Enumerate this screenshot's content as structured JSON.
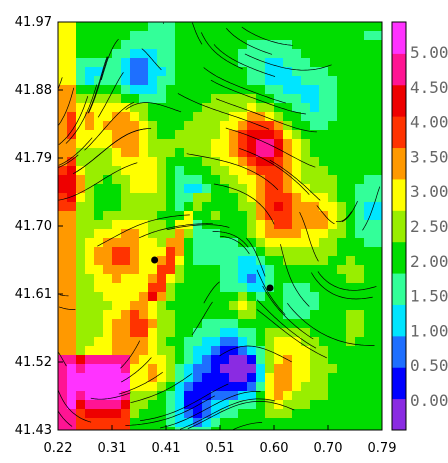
{
  "chart_data": {
    "type": "heatmap",
    "title": "",
    "xlabel": "",
    "ylabel": "",
    "x_ticks": [
      "0.22",
      "0.31",
      "0.41",
      "0.51",
      "0.60",
      "0.70",
      "0.79"
    ],
    "y_ticks": [
      "41.97",
      "41.88",
      "41.79",
      "41.70",
      "41.61",
      "41.52",
      "41.43"
    ],
    "xlim": [
      0.22,
      0.79
    ],
    "ylim": [
      41.43,
      41.97
    ],
    "overlay": "streamlines",
    "colorbar": {
      "labels": [
        "0.000",
        "0.500",
        "1.000",
        "1.500",
        "2.000",
        "2.500",
        "3.000",
        "3.500",
        "4.000",
        "4.500",
        "5.000"
      ],
      "colors": [
        "#8a2be2",
        "#0000ff",
        "#1e6fff",
        "#00e5ff",
        "#33ff99",
        "#00dd00",
        "#99ee00",
        "#ffff00",
        "#ff9900",
        "#ff3300",
        "#ee0000",
        "#ff1493",
        "#ff33ff"
      ]
    },
    "points": [
      {
        "x": 0.39,
        "y": 41.655
      },
      {
        "x": 0.593,
        "y": 41.618
      }
    ]
  }
}
